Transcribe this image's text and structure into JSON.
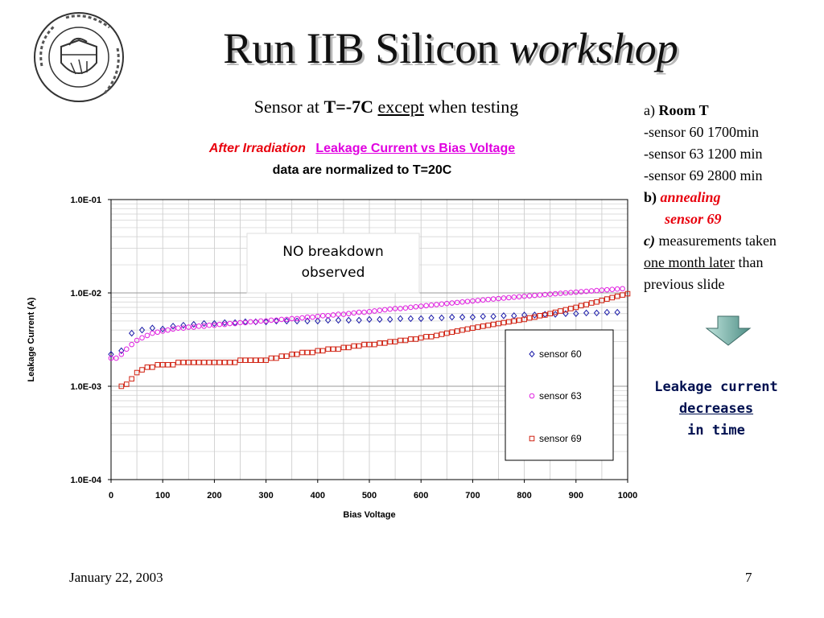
{
  "title": {
    "main": "Run IIB Silicon",
    "italic": "workshop"
  },
  "subtitle": {
    "pre": "Sensor at",
    "temp": "T=-7C",
    "except": "except",
    "post": "when testing"
  },
  "chart_header": {
    "line1_red": "After Irradiation",
    "line1_magenta": "Leakage Current vs Bias Voltage",
    "line2": "data are normalized to T=20C"
  },
  "notes": {
    "a_label": "a)",
    "a_text": "Room T",
    "items": [
      "-sensor 60 1700min",
      "-sensor 63 1200 min",
      "-sensor 69 2800 min"
    ],
    "b_label": "b)",
    "b_text1": "annealing",
    "b_text2": "sensor 69",
    "c_label": "c)",
    "c_text": "measurements taken",
    "c_underline": "one month later",
    "c_text2": "than",
    "c_text3": "previous slide"
  },
  "conclusion": {
    "line1": "Leakage current",
    "line2": "decreases",
    "line3": "in time"
  },
  "footer": {
    "date": "January 22, 2003",
    "page": "7"
  },
  "colors": {
    "sensor60": "#1a1aa8",
    "sensor63": "#e020e0",
    "sensor69": "#d02010",
    "arrow": "#7fbfb4"
  },
  "chart_data": {
    "type": "scatter",
    "title": "",
    "xlabel": "Bias Voltage",
    "ylabel": "Leakage Current (A)",
    "xlim": [
      0,
      1000
    ],
    "ylim": [
      0.0001,
      0.1
    ],
    "yscale": "log",
    "xticks": [
      "0",
      "100",
      "200",
      "300",
      "400",
      "500",
      "600",
      "700",
      "800",
      "900",
      "1000"
    ],
    "yticks": [
      "1.0E-01",
      "1.0E-02",
      "1.0E-03",
      "1.0E-04"
    ],
    "grid": true,
    "legend_position": "bottom-right",
    "annotation": "NO breakdown observed",
    "series": [
      {
        "name": "sensor 60",
        "marker": "diamond",
        "color": "#1a1aa8",
        "x": [
          0,
          20,
          40,
          60,
          80,
          100,
          120,
          140,
          160,
          180,
          200,
          220,
          240,
          260,
          280,
          300,
          320,
          340,
          360,
          380,
          400,
          420,
          440,
          460,
          480,
          500,
          520,
          540,
          560,
          580,
          600,
          620,
          640,
          660,
          680,
          700,
          720,
          740,
          760,
          780,
          800,
          820,
          840,
          860,
          880,
          900,
          920,
          940,
          960,
          980
        ],
        "y": [
          0.0022,
          0.0024,
          0.0037,
          0.004,
          0.0042,
          0.0041,
          0.0044,
          0.0045,
          0.0046,
          0.0047,
          0.0047,
          0.0048,
          0.0048,
          0.0049,
          0.0049,
          0.0049,
          0.005,
          0.005,
          0.005,
          0.005,
          0.005,
          0.0051,
          0.0051,
          0.0051,
          0.0051,
          0.0052,
          0.0052,
          0.0052,
          0.0053,
          0.0053,
          0.0053,
          0.0054,
          0.0054,
          0.0055,
          0.0055,
          0.0055,
          0.0056,
          0.0056,
          0.0057,
          0.0057,
          0.0058,
          0.0058,
          0.0059,
          0.0059,
          0.006,
          0.006,
          0.0061,
          0.0061,
          0.0062,
          0.0062
        ]
      },
      {
        "name": "sensor 63",
        "marker": "circle",
        "color": "#e020e0",
        "x": [
          0,
          10,
          20,
          30,
          40,
          50,
          60,
          70,
          80,
          90,
          100,
          110,
          120,
          130,
          140,
          150,
          160,
          170,
          180,
          190,
          200,
          210,
          220,
          230,
          240,
          250,
          260,
          270,
          280,
          290,
          300,
          310,
          320,
          330,
          340,
          350,
          360,
          370,
          380,
          390,
          400,
          410,
          420,
          430,
          440,
          450,
          460,
          470,
          480,
          490,
          500,
          510,
          520,
          530,
          540,
          550,
          560,
          570,
          580,
          590,
          600,
          610,
          620,
          630,
          640,
          650,
          660,
          670,
          680,
          690,
          700,
          710,
          720,
          730,
          740,
          750,
          760,
          770,
          780,
          790,
          800,
          810,
          820,
          830,
          840,
          850,
          860,
          870,
          880,
          890,
          900,
          910,
          920,
          930,
          940,
          950,
          960,
          970,
          980,
          990
        ],
        "y": [
          0.002,
          0.002,
          0.0022,
          0.0025,
          0.0028,
          0.0031,
          0.0033,
          0.0035,
          0.0037,
          0.0038,
          0.0039,
          0.004,
          0.0041,
          0.0042,
          0.0042,
          0.0043,
          0.0043,
          0.0044,
          0.0044,
          0.0045,
          0.0045,
          0.0046,
          0.0046,
          0.0047,
          0.0047,
          0.0048,
          0.0048,
          0.0049,
          0.0049,
          0.005,
          0.005,
          0.0051,
          0.0051,
          0.0052,
          0.0052,
          0.0053,
          0.0053,
          0.0054,
          0.0055,
          0.0055,
          0.0056,
          0.0057,
          0.0057,
          0.0058,
          0.0059,
          0.0059,
          0.006,
          0.0061,
          0.0062,
          0.0062,
          0.0063,
          0.0064,
          0.0065,
          0.0066,
          0.0067,
          0.0068,
          0.0068,
          0.0069,
          0.007,
          0.0071,
          0.0072,
          0.0073,
          0.0074,
          0.0075,
          0.0076,
          0.0077,
          0.0078,
          0.0079,
          0.008,
          0.0081,
          0.0082,
          0.0083,
          0.0084,
          0.0085,
          0.0086,
          0.0087,
          0.0088,
          0.0089,
          0.009,
          0.0091,
          0.0092,
          0.0093,
          0.0094,
          0.0095,
          0.0096,
          0.0097,
          0.0098,
          0.0099,
          0.01,
          0.0101,
          0.0102,
          0.0103,
          0.0104,
          0.0105,
          0.0106,
          0.0107,
          0.0108,
          0.0109,
          0.011,
          0.0111
        ]
      },
      {
        "name": "sensor 69",
        "marker": "square",
        "color": "#d02010",
        "x": [
          20,
          30,
          40,
          50,
          60,
          70,
          80,
          90,
          100,
          110,
          120,
          130,
          140,
          150,
          160,
          170,
          180,
          190,
          200,
          210,
          220,
          230,
          240,
          250,
          260,
          270,
          280,
          290,
          300,
          310,
          320,
          330,
          340,
          350,
          360,
          370,
          380,
          390,
          400,
          410,
          420,
          430,
          440,
          450,
          460,
          470,
          480,
          490,
          500,
          510,
          520,
          530,
          540,
          550,
          560,
          570,
          580,
          590,
          600,
          610,
          620,
          630,
          640,
          650,
          660,
          670,
          680,
          690,
          700,
          710,
          720,
          730,
          740,
          750,
          760,
          770,
          780,
          790,
          800,
          810,
          820,
          830,
          840,
          850,
          860,
          870,
          880,
          890,
          900,
          910,
          920,
          930,
          940,
          950,
          960,
          970,
          980,
          990,
          1000
        ],
        "y": [
          0.001,
          0.00105,
          0.0012,
          0.0014,
          0.0015,
          0.0016,
          0.0016,
          0.0017,
          0.0017,
          0.0017,
          0.0017,
          0.0018,
          0.0018,
          0.0018,
          0.0018,
          0.0018,
          0.0018,
          0.0018,
          0.0018,
          0.0018,
          0.0018,
          0.0018,
          0.0018,
          0.0019,
          0.0019,
          0.0019,
          0.0019,
          0.0019,
          0.0019,
          0.002,
          0.002,
          0.0021,
          0.0021,
          0.0022,
          0.0022,
          0.0023,
          0.0023,
          0.0023,
          0.0024,
          0.0024,
          0.0025,
          0.0025,
          0.0025,
          0.0026,
          0.0026,
          0.0027,
          0.0027,
          0.0028,
          0.0028,
          0.0028,
          0.0029,
          0.0029,
          0.003,
          0.003,
          0.0031,
          0.0031,
          0.0032,
          0.0032,
          0.0033,
          0.0034,
          0.0034,
          0.0035,
          0.0036,
          0.0037,
          0.0038,
          0.0039,
          0.004,
          0.0041,
          0.0042,
          0.0043,
          0.0044,
          0.0045,
          0.0046,
          0.0047,
          0.0048,
          0.0049,
          0.005,
          0.0051,
          0.0052,
          0.0054,
          0.0055,
          0.0057,
          0.0058,
          0.006,
          0.0062,
          0.0064,
          0.0066,
          0.0068,
          0.007,
          0.0073,
          0.0075,
          0.0078,
          0.008,
          0.0083,
          0.0086,
          0.0089,
          0.0092,
          0.0095,
          0.0098
        ]
      }
    ]
  }
}
